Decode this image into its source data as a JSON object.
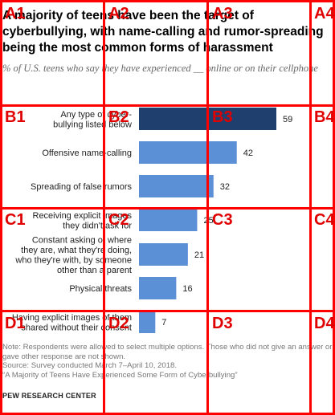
{
  "title": "A majority of teens have been the target of cyberbullying, with name-calling and rumor-spreading being the most common forms of harassment",
  "subtitle": "% of U.S. teens who say they have experienced __ online or on their cellphone",
  "chart_data": {
    "type": "bar",
    "orientation": "horizontal",
    "categories": [
      "Any type of cyber-\nbullying listed below",
      "Offensive name-calling",
      "Spreading of false rumors",
      "Receiving explicit images\nthey didn't ask for",
      "Constant asking of where\nthey are, what they're doing,\nwho they're with, by someone\nother than a parent",
      "Physical threats",
      "Having explicit images of them\nshared without their consent"
    ],
    "values": [
      59,
      42,
      32,
      25,
      21,
      16,
      7
    ],
    "value_labels": [
      "59",
      "42",
      "32",
      "25",
      "21",
      "16",
      "7"
    ],
    "colors": [
      "#1f3f6e",
      "#5b8fd6",
      "#5b8fd6",
      "#5b8fd6",
      "#5b8fd6",
      "#5b8fd6",
      "#5b8fd6"
    ],
    "xlim": [
      0,
      65
    ]
  },
  "notes": {
    "note": "Note: Respondents were allowed to select multiple options. Those who did not give an answer or gave other response are not shown.",
    "source": "Source: Survey conducted March 7–April 10, 2018.",
    "report": "“A Majority of Teens Have Experienced Some Form of Cyberbullying”",
    "org": "PEW RESEARCH CENTER"
  },
  "grid": {
    "color": "#ff0000",
    "labels": [
      "A1",
      "A2",
      "A3",
      "A4",
      "B1",
      "B2",
      "B3",
      "B4",
      "C1",
      "C2",
      "C3",
      "C4",
      "D1",
      "D2",
      "D3",
      "D4"
    ]
  }
}
